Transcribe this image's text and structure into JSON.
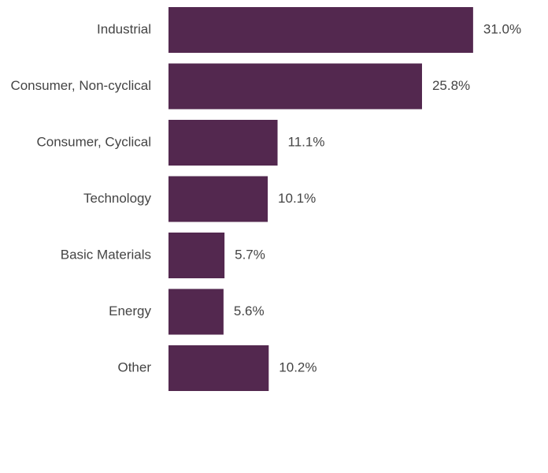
{
  "chart_data": {
    "type": "bar",
    "orientation": "horizontal",
    "categories": [
      "Industrial",
      "Consumer, Non-cyclical",
      "Consumer, Cyclical",
      "Technology",
      "Basic Materials",
      "Energy",
      "Other"
    ],
    "values": [
      31.0,
      25.8,
      11.1,
      10.1,
      5.7,
      5.6,
      10.2
    ],
    "value_labels": [
      "31.0%",
      "25.8%",
      "11.1%",
      "10.1%",
      "5.7%",
      "5.6%",
      "10.2%"
    ],
    "color": "#53284f"
  }
}
